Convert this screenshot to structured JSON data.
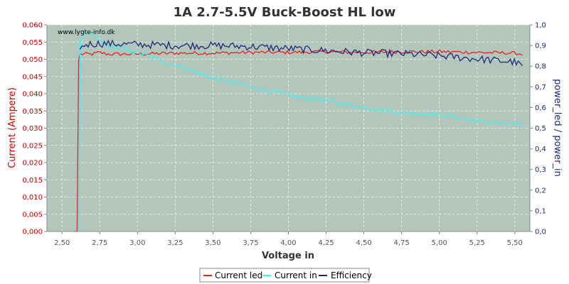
{
  "chart_data": {
    "type": "line",
    "title": "1A 2.7-5.5V Buck-Boost HL low",
    "watermark": "www.lygte-info.dk",
    "xlabel": "Voltage in",
    "ylabel_left": "Current (Ampere)",
    "ylabel_right": "power_led / power_in",
    "xlim": [
      2.4,
      5.6
    ],
    "ylim_left": [
      0,
      0.06
    ],
    "ylim_right": [
      0,
      1.0
    ],
    "x_ticks": [
      "2,50",
      "2,75",
      "3,00",
      "3,25",
      "3,50",
      "3,75",
      "4,00",
      "4,25",
      "4,50",
      "4,75",
      "5,00",
      "5,25",
      "5,50"
    ],
    "x_tick_values": [
      2.5,
      2.75,
      3.0,
      3.25,
      3.5,
      3.75,
      4.0,
      4.25,
      4.5,
      4.75,
      5.0,
      5.25,
      5.5
    ],
    "y_left_ticks": [
      "0,000",
      "0,005",
      "0,010",
      "0,015",
      "0,020",
      "0,025",
      "0,030",
      "0,035",
      "0,040",
      "0,045",
      "0,050",
      "0,055",
      "0,060"
    ],
    "y_left_tick_values": [
      0,
      0.005,
      0.01,
      0.015,
      0.02,
      0.025,
      0.03,
      0.035,
      0.04,
      0.045,
      0.05,
      0.055,
      0.06
    ],
    "y_right_ticks": [
      "0,0",
      "0,1",
      "0,2",
      "0,3",
      "0,4",
      "0,5",
      "0,6",
      "0,7",
      "0,8",
      "0,9",
      "1,0"
    ],
    "y_right_tick_values": [
      0,
      0.1,
      0.2,
      0.3,
      0.4,
      0.5,
      0.6,
      0.7,
      0.8,
      0.9,
      1.0
    ],
    "grid": true,
    "legend_position": "bottom",
    "series": [
      {
        "name": "Current led",
        "color": "#e8202a",
        "axis": "left",
        "x": [
          2.58,
          2.6,
          2.61,
          2.62,
          2.7,
          2.75,
          2.8,
          3.0,
          3.25,
          3.5,
          3.75,
          4.0,
          4.25,
          4.5,
          4.75,
          5.0,
          5.25,
          5.5,
          5.55
        ],
        "y": [
          0.0,
          0.0,
          0.05,
          0.0515,
          0.0515,
          0.052,
          0.0515,
          0.0515,
          0.0518,
          0.0518,
          0.052,
          0.052,
          0.0522,
          0.052,
          0.0522,
          0.0522,
          0.052,
          0.0518,
          0.0515
        ]
      },
      {
        "name": "Current in",
        "color": "#40f0f0",
        "axis": "left",
        "x": [
          2.61,
          2.62,
          2.65,
          2.7,
          2.8,
          2.9,
          3.0,
          3.1,
          3.2,
          3.25,
          3.4,
          3.5,
          3.75,
          4.0,
          4.25,
          4.5,
          4.75,
          5.0,
          5.25,
          5.5,
          5.55
        ],
        "y": [
          0.0,
          0.055,
          0.058,
          0.057,
          0.054,
          0.053,
          0.052,
          0.0505,
          0.049,
          0.0485,
          0.046,
          0.0445,
          0.042,
          0.0395,
          0.038,
          0.036,
          0.0345,
          0.034,
          0.032,
          0.031,
          0.0305
        ]
      },
      {
        "name": "Efficiency",
        "color": "#1e2a78",
        "axis": "right",
        "x": [
          2.62,
          2.65,
          2.75,
          3.0,
          3.25,
          3.5,
          3.75,
          4.0,
          4.25,
          4.5,
          4.75,
          5.0,
          5.25,
          5.5,
          5.55
        ],
        "y": [
          0.88,
          0.905,
          0.91,
          0.905,
          0.9,
          0.9,
          0.895,
          0.885,
          0.875,
          0.865,
          0.86,
          0.85,
          0.835,
          0.82,
          0.8
        ]
      }
    ]
  }
}
